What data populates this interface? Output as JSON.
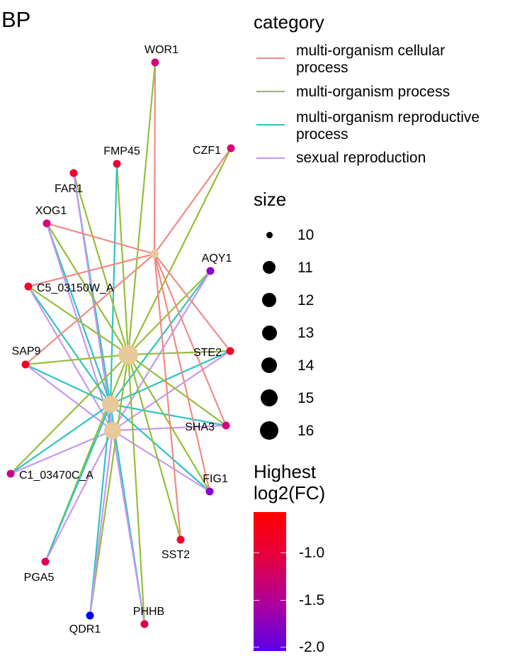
{
  "title": "BP",
  "category_legend": {
    "title": "category",
    "items": [
      {
        "label": "multi-organism cellular\nprocess",
        "color": "#F08B85"
      },
      {
        "label": "multi-organism process",
        "color": "#96BE3A"
      },
      {
        "label": "multi-organism reproductive\nprocess",
        "color": "#2EC3C3"
      },
      {
        "label": "sexual reproduction",
        "color": "#C897F0"
      }
    ]
  },
  "size_legend": {
    "title": "size",
    "values": [
      "10",
      "11",
      "12",
      "13",
      "14",
      "15",
      "16"
    ]
  },
  "color_legend": {
    "title": "Highest\nlog2(FC)",
    "ticks": [
      "-1.0",
      "-1.5",
      "-2.0"
    ],
    "colors": [
      "#ff0000",
      "#e8003a",
      "#b0009a",
      "#5a00e8"
    ]
  },
  "network": {
    "center_color": "#E8C99A",
    "genes": [
      {
        "name": "WOR1",
        "color": "#d8007a"
      },
      {
        "name": "CZF1",
        "color": "#d8007a"
      },
      {
        "name": "FMP45",
        "color": "#f0003a"
      },
      {
        "name": "FAR1",
        "color": "#f4002a"
      },
      {
        "name": "XOG1",
        "color": "#d8007a"
      },
      {
        "name": "AQY1",
        "color": "#8a00d0"
      },
      {
        "name": "C5_03150W_A",
        "color": "#f4002a"
      },
      {
        "name": "STE2",
        "color": "#f4002a"
      },
      {
        "name": "SAP9",
        "color": "#f4002a"
      },
      {
        "name": "SHA3",
        "color": "#d8007a"
      },
      {
        "name": "C1_03470C_A",
        "color": "#c8008a"
      },
      {
        "name": "FIG1",
        "color": "#8a00d0"
      },
      {
        "name": "SST2",
        "color": "#f4002a"
      },
      {
        "name": "PGA5",
        "color": "#e0005a"
      },
      {
        "name": "PHHB",
        "color": "#e0004a"
      },
      {
        "name": "QDR1",
        "color": "#0000ff"
      }
    ]
  }
}
